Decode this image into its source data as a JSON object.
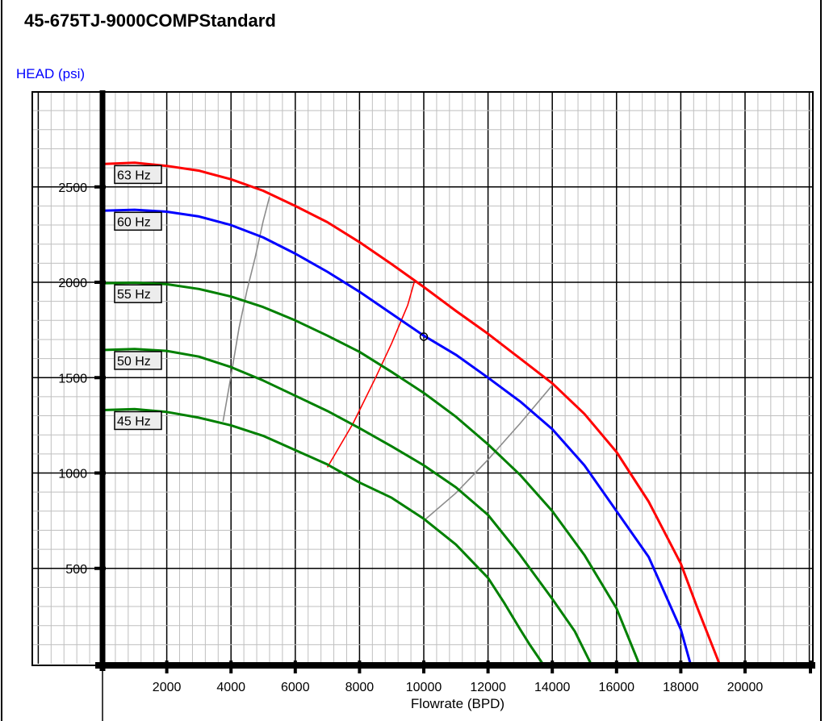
{
  "chart_data": {
    "type": "line",
    "title": "45-675TJ-9000COMPStandard",
    "ylabel": "HEAD (psi)",
    "xlabel": "Flowrate (BPD)",
    "xlim": [
      -2000,
      22000
    ],
    "ylim": [
      0,
      2950
    ],
    "x_ticks": [
      2000,
      4000,
      6000,
      8000,
      10000,
      12000,
      14000,
      16000,
      18000,
      20000
    ],
    "y_ticks": [
      500,
      1000,
      1500,
      2000,
      2500
    ],
    "x_tick_labels": [
      "2000",
      "4000",
      "6000",
      "8000",
      "10000",
      "12000",
      "14000",
      "16000",
      "18000",
      "20000"
    ],
    "y_tick_labels": [
      "500",
      "1000",
      "1500",
      "2000",
      "2500"
    ],
    "grid": true,
    "colors": {
      "red": "#ff0000",
      "blue": "#0000ff",
      "green": "#008000",
      "gray": "#8c8c8c",
      "ylabel": "#0000ff",
      "grid_major": "#000000",
      "grid_minor": "#bfbfbf"
    },
    "series": [
      {
        "name": "63 Hz",
        "color": "red",
        "x": [
          0,
          1000,
          2000,
          3000,
          4000,
          5000,
          6000,
          7000,
          8000,
          9000,
          10000,
          11000,
          12000,
          13000,
          14000,
          15000,
          16000,
          17000,
          18000,
          18500,
          19200
        ],
        "y": [
          2620,
          2627,
          2610,
          2585,
          2540,
          2480,
          2400,
          2315,
          2210,
          2095,
          1975,
          1850,
          1730,
          1600,
          1470,
          1310,
          1110,
          850,
          525,
          300,
          0
        ]
      },
      {
        "name": "60 Hz",
        "color": "blue",
        "x": [
          0,
          1000,
          2000,
          3000,
          4000,
          5000,
          6000,
          7000,
          8000,
          9000,
          10000,
          11000,
          12000,
          13000,
          14000,
          15000,
          16000,
          17000,
          18000,
          18300
        ],
        "y": [
          2375,
          2380,
          2370,
          2345,
          2300,
          2235,
          2150,
          2055,
          1950,
          1835,
          1720,
          1620,
          1500,
          1375,
          1230,
          1040,
          800,
          560,
          180,
          0
        ]
      },
      {
        "name": "55 Hz",
        "color": "green",
        "x": [
          0,
          1000,
          2000,
          3000,
          4000,
          5000,
          6000,
          7000,
          8000,
          9000,
          10000,
          11000,
          12000,
          13000,
          14000,
          15000,
          16000,
          16700
        ],
        "y": [
          1995,
          1998,
          1990,
          1965,
          1925,
          1870,
          1800,
          1720,
          1635,
          1530,
          1420,
          1295,
          1150,
          990,
          800,
          570,
          290,
          0
        ]
      },
      {
        "name": "50 Hz",
        "color": "green",
        "x": [
          0,
          1000,
          2000,
          3000,
          4000,
          5000,
          6000,
          7000,
          8000,
          9000,
          10000,
          11000,
          12000,
          13000,
          14000,
          14700,
          15200
        ],
        "y": [
          1645,
          1650,
          1640,
          1610,
          1555,
          1485,
          1405,
          1325,
          1235,
          1140,
          1040,
          925,
          780,
          570,
          340,
          170,
          0
        ]
      },
      {
        "name": "45 Hz",
        "color": "green",
        "x": [
          0,
          1000,
          2000,
          3000,
          4000,
          5000,
          6000,
          7000,
          8000,
          9000,
          10000,
          11000,
          12000,
          12500,
          13000,
          13300,
          13700
        ],
        "y": [
          1330,
          1335,
          1320,
          1290,
          1250,
          1195,
          1120,
          1045,
          950,
          870,
          760,
          625,
          450,
          320,
          180,
          100,
          0
        ]
      }
    ],
    "boundary_lines": [
      {
        "color": "gray",
        "x": [
          3750,
          4000,
          4250,
          4500,
          4750,
          5000,
          5200
        ],
        "y": [
          1270,
          1510,
          1760,
          1960,
          2130,
          2320,
          2450
        ]
      },
      {
        "color": "red",
        "x": [
          7000,
          7800,
          8500,
          9000,
          9500,
          9700
        ],
        "y": [
          1030,
          1260,
          1500,
          1680,
          1880,
          2000
        ]
      },
      {
        "color": "gray",
        "x": [
          10000,
          11000,
          12000,
          13000,
          14000
        ],
        "y": [
          750,
          895,
          1070,
          1260,
          1460
        ]
      }
    ],
    "operating_point": {
      "x": 10000,
      "y": 1715
    },
    "curve_labels": [
      {
        "text": "63 Hz",
        "color": "red",
        "y": 2620
      },
      {
        "text": "60 Hz",
        "color": "blue",
        "y": 2375
      },
      {
        "text": "55 Hz",
        "color": "green",
        "y": 1995
      },
      {
        "text": "50 Hz",
        "color": "green",
        "y": 1645
      },
      {
        "text": "45 Hz",
        "color": "green",
        "y": 1330
      }
    ]
  }
}
